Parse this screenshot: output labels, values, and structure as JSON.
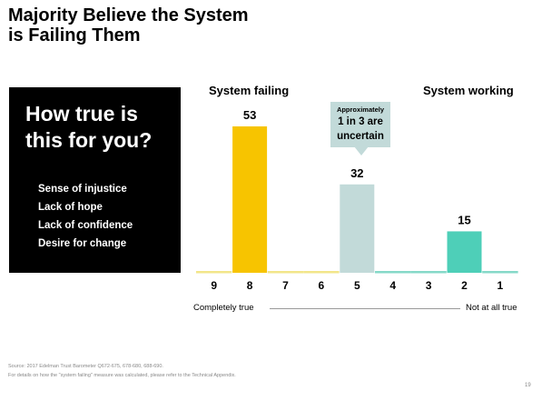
{
  "slide": {
    "title_line1": "Majority Believe the System",
    "title_line2": "is Failing Them",
    "box_heading_line1": "How true is",
    "box_heading_line2": "this for you?",
    "box_items": [
      "Sense of injustice",
      "Lack of hope",
      "Lack of confidence",
      "Desire for change"
    ],
    "left_header": "System failing",
    "right_header": "System working",
    "callout_small": "Approximately",
    "callout_line1": "1 in 3 are",
    "callout_line2": "uncertain",
    "axis_left_label": "Completely true",
    "axis_right_label": "Not at all true",
    "source": "Source: 2017 Edelman Trust Barometer Q672-675, 678-680, 688-690.",
    "note": "For details on how the \"system failing\" measure was calculated, please refer to the Technical Appendix.",
    "page_number": "19"
  },
  "chart_data": {
    "type": "bar",
    "categories": [
      "9",
      "8",
      "7",
      "6",
      "5",
      "4",
      "3",
      "2",
      "1"
    ],
    "values": [
      0,
      53,
      0,
      0,
      32,
      0,
      0,
      15,
      0
    ],
    "labels": [
      "",
      "53",
      "",
      "",
      "32",
      "",
      "",
      "15",
      ""
    ],
    "groups": [
      {
        "name": "System failing",
        "categories": [
          "9",
          "8",
          "7",
          "6"
        ],
        "color": "#f7c400",
        "baseline_color": "#f2e68a"
      },
      {
        "name": "Uncertain",
        "categories": [
          "5"
        ],
        "color": "#c2dad9",
        "baseline_color": "#c2dad9"
      },
      {
        "name": "System working",
        "categories": [
          "4",
          "3",
          "2",
          "1"
        ],
        "color": "#4ecfb8",
        "baseline_color": "#86d9c8"
      }
    ],
    "colors": [
      "#f2e68a",
      "#f7c400",
      "#f2e68a",
      "#f2e68a",
      "#c2dad9",
      "#86d9c8",
      "#86d9c8",
      "#4ecfb8",
      "#86d9c8"
    ],
    "ylim": [
      0,
      53
    ]
  }
}
